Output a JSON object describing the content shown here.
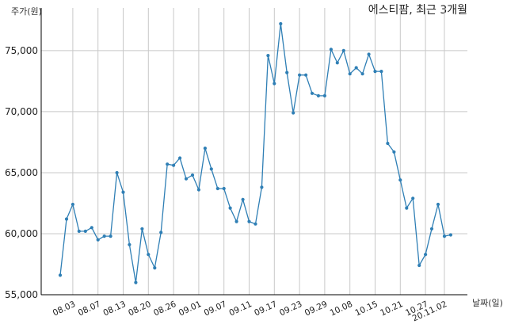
{
  "chart_data": {
    "type": "line",
    "title": "에스티팜, 최근 3개월",
    "xlabel": "날짜(일)",
    "ylabel": "주가(원)",
    "color": "#2f7fb5",
    "ylim": [
      55000,
      78500
    ],
    "yticks": [
      55000,
      60000,
      65000,
      70000,
      75000
    ],
    "ytick_labels": [
      "55,000",
      "60,000",
      "65,000",
      "70,000",
      "75,000"
    ],
    "xticks": [
      {
        "index": 2,
        "label": "08.03"
      },
      {
        "index": 6,
        "label": "08.07"
      },
      {
        "index": 10,
        "label": "08.13"
      },
      {
        "index": 14,
        "label": "08.20"
      },
      {
        "index": 18,
        "label": "08.26"
      },
      {
        "index": 22,
        "label": "09.01"
      },
      {
        "index": 26,
        "label": "09.07"
      },
      {
        "index": 30,
        "label": "09.11"
      },
      {
        "index": 34,
        "label": "09.17"
      },
      {
        "index": 38,
        "label": "09.23"
      },
      {
        "index": 42,
        "label": "09.29"
      },
      {
        "index": 46,
        "label": "10.08"
      },
      {
        "index": 50,
        "label": "10.15"
      },
      {
        "index": 54,
        "label": "10.21"
      },
      {
        "index": 58,
        "label": "10.27"
      },
      {
        "index": 61,
        "label": "20.11.02"
      }
    ],
    "series": [
      {
        "values": [
          56600,
          61200,
          62400,
          60200,
          60200,
          60500,
          59500,
          59800,
          59800,
          65000,
          63400,
          59100,
          56000,
          60400,
          58300,
          57200,
          60100,
          65700,
          65600,
          66200,
          64500,
          64800,
          63600,
          67000,
          65300,
          63700,
          63700,
          62100,
          61000,
          62800,
          61000,
          60800,
          63800,
          74600,
          72300,
          77200,
          73200,
          69900,
          73000,
          73000,
          71500,
          71300,
          71300,
          75100,
          74000,
          75000,
          73100,
          73600,
          73100,
          74700,
          73300,
          73300,
          67400,
          66700,
          64400,
          62100,
          62900,
          57400,
          58300,
          60400,
          62400,
          59800,
          59900
        ]
      }
    ]
  }
}
